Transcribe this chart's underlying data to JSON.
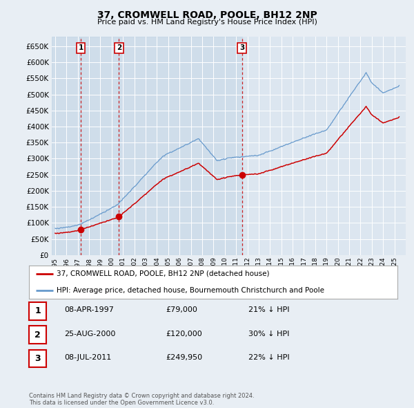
{
  "title": "37, CROMWELL ROAD, POOLE, BH12 2NP",
  "subtitle": "Price paid vs. HM Land Registry's House Price Index (HPI)",
  "sale_year_nums": [
    1997.274,
    2000.648,
    2011.518
  ],
  "sale_prices": [
    79000,
    120000,
    249950
  ],
  "sale_labels": [
    "1",
    "2",
    "3"
  ],
  "hpi_label": "HPI: Average price, detached house, Bournemouth Christchurch and Poole",
  "property_label": "37, CROMWELL ROAD, POOLE, BH12 2NP (detached house)",
  "table_rows": [
    [
      "1",
      "08-APR-1997",
      "£79,000",
      "21% ↓ HPI"
    ],
    [
      "2",
      "25-AUG-2000",
      "£120,000",
      "30% ↓ HPI"
    ],
    [
      "3",
      "08-JUL-2011",
      "£249,950",
      "22% ↓ HPI"
    ]
  ],
  "footer": "Contains HM Land Registry data © Crown copyright and database right 2024.\nThis data is licensed under the Open Government Licence v3.0.",
  "red_color": "#cc0000",
  "blue_color": "#6699cc",
  "background_color": "#e8eef4",
  "plot_bg_color": "#dce6f0",
  "band_color": "#ccd9e8",
  "grid_color": "#b8c8d8",
  "ylim": [
    0,
    680000
  ],
  "xlim_left": 1994.7,
  "xlim_right": 2026.0,
  "yticks": [
    0,
    50000,
    100000,
    150000,
    200000,
    250000,
    300000,
    350000,
    400000,
    450000,
    500000,
    550000,
    600000,
    650000
  ],
  "fig_width": 6.0,
  "fig_height": 5.9
}
